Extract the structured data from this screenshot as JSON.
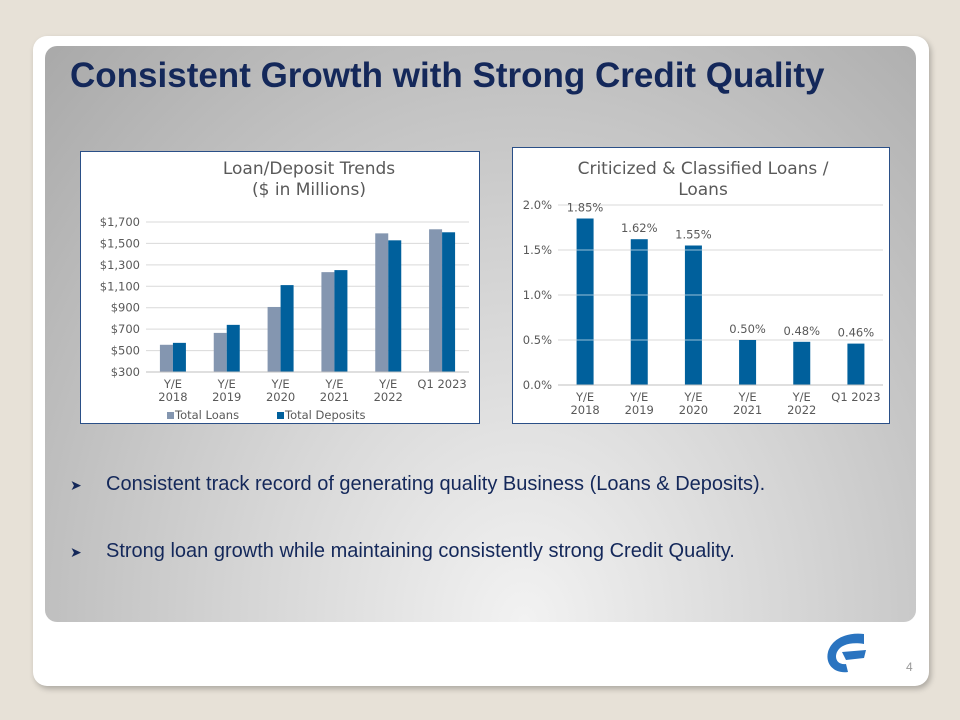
{
  "title": "Consistent Growth with Strong Credit Quality",
  "bullets": [
    "Consistent track record of generating quality Business (Loans & Deposits).",
    "Strong loan growth while maintaining consistently strong Credit Quality."
  ],
  "bullet_icon": "arrowhead-bullet",
  "page_number": "4",
  "chart_data": [
    {
      "type": "bar",
      "title": [
        "Loan/Deposit Trends",
        "($ in Millions)"
      ],
      "categories": [
        [
          "Y/E",
          "2018"
        ],
        [
          "Y/E",
          "2019"
        ],
        [
          "Y/E",
          "2020"
        ],
        [
          "Y/E",
          "2021"
        ],
        [
          "Y/E",
          "2022"
        ],
        [
          "Q1 2023"
        ]
      ],
      "ylim": [
        300,
        1700
      ],
      "yticks": [
        "$300",
        "$500",
        "$700",
        "$900",
        "$1,100",
        "$1,300",
        "$1,500",
        "$1,700"
      ],
      "grid": true,
      "legend": "bottom",
      "series": [
        {
          "name": "Total Loans",
          "color": "#8496b0",
          "values": [
            554,
            665,
            907,
            1232,
            1594,
            1632
          ]
        },
        {
          "name": "Total Deposits",
          "color": "#00609c",
          "values": [
            572,
            740,
            1111,
            1251,
            1529,
            1604
          ]
        }
      ]
    },
    {
      "type": "bar",
      "title": [
        "Criticized & Classified Loans /",
        "Loans"
      ],
      "categories": [
        [
          "Y/E",
          "2018"
        ],
        [
          "Y/E",
          "2019"
        ],
        [
          "Y/E",
          "2020"
        ],
        [
          "Y/E",
          "2021"
        ],
        [
          "Y/E",
          "2022"
        ],
        [
          "Q1 2023"
        ]
      ],
      "ylim": [
        0,
        2.0
      ],
      "yticks": [
        "0.0%",
        "0.5%",
        "1.0%",
        "1.5%",
        "2.0%"
      ],
      "grid": true,
      "series": [
        {
          "color": "#00609c",
          "values": [
            1.85,
            1.62,
            1.55,
            0.5,
            0.48,
            0.46
          ],
          "labels": [
            "1.85%",
            "1.62%",
            "1.55%",
            "0.50%",
            "0.48%",
            "0.46%"
          ]
        }
      ]
    }
  ]
}
